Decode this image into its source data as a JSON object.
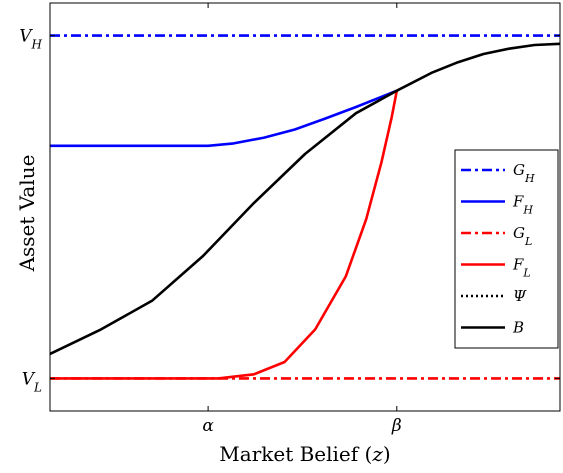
{
  "chart_data": {
    "type": "line",
    "title": "",
    "xlabel": "Market Belief (z)",
    "ylabel": "Asset Value",
    "xlim": [
      0,
      1
    ],
    "ylim": [
      0,
      1
    ],
    "x_ticks": [
      {
        "label": "α",
        "value": 0.31
      },
      {
        "label": "β",
        "value": 0.68
      }
    ],
    "y_ticks": [
      {
        "label": "V_H",
        "value": 0.92
      },
      {
        "label": "V_L",
        "value": 0.08
      }
    ],
    "legend_position": "right",
    "grid": false,
    "series": [
      {
        "name": "G_H",
        "color": "#0000ff",
        "dash": "dashdot",
        "x": [
          0,
          1
        ],
        "y": [
          0.92,
          0.92
        ]
      },
      {
        "name": "F_H",
        "color": "#0000ff",
        "dash": "solid",
        "x": [
          0,
          0.31,
          0.36,
          0.42,
          0.48,
          0.54,
          0.6,
          0.65,
          0.68
        ],
        "y": [
          0.65,
          0.65,
          0.656,
          0.67,
          0.69,
          0.717,
          0.745,
          0.77,
          0.785
        ]
      },
      {
        "name": "G_L",
        "color": "#ff0000",
        "dash": "dashdot",
        "x": [
          0,
          1
        ],
        "y": [
          0.08,
          0.08
        ]
      },
      {
        "name": "F_L",
        "color": "#ff0000",
        "dash": "solid",
        "x": [
          0,
          0.33,
          0.4,
          0.46,
          0.52,
          0.58,
          0.62,
          0.65,
          0.67,
          0.68
        ],
        "y": [
          0.08,
          0.08,
          0.09,
          0.12,
          0.2,
          0.33,
          0.47,
          0.61,
          0.72,
          0.785
        ]
      },
      {
        "name": "Ψ",
        "color": "#000000",
        "dash": "dotted",
        "x": [],
        "y": []
      },
      {
        "name": "B",
        "color": "#000000",
        "dash": "solid",
        "x": [
          0,
          0.1,
          0.2,
          0.3,
          0.4,
          0.5,
          0.6,
          0.68,
          0.75,
          0.8,
          0.85,
          0.9,
          0.95,
          1
        ],
        "y": [
          0.14,
          0.2,
          0.27,
          0.38,
          0.51,
          0.63,
          0.73,
          0.785,
          0.83,
          0.855,
          0.875,
          0.888,
          0.897,
          0.9
        ]
      }
    ]
  }
}
